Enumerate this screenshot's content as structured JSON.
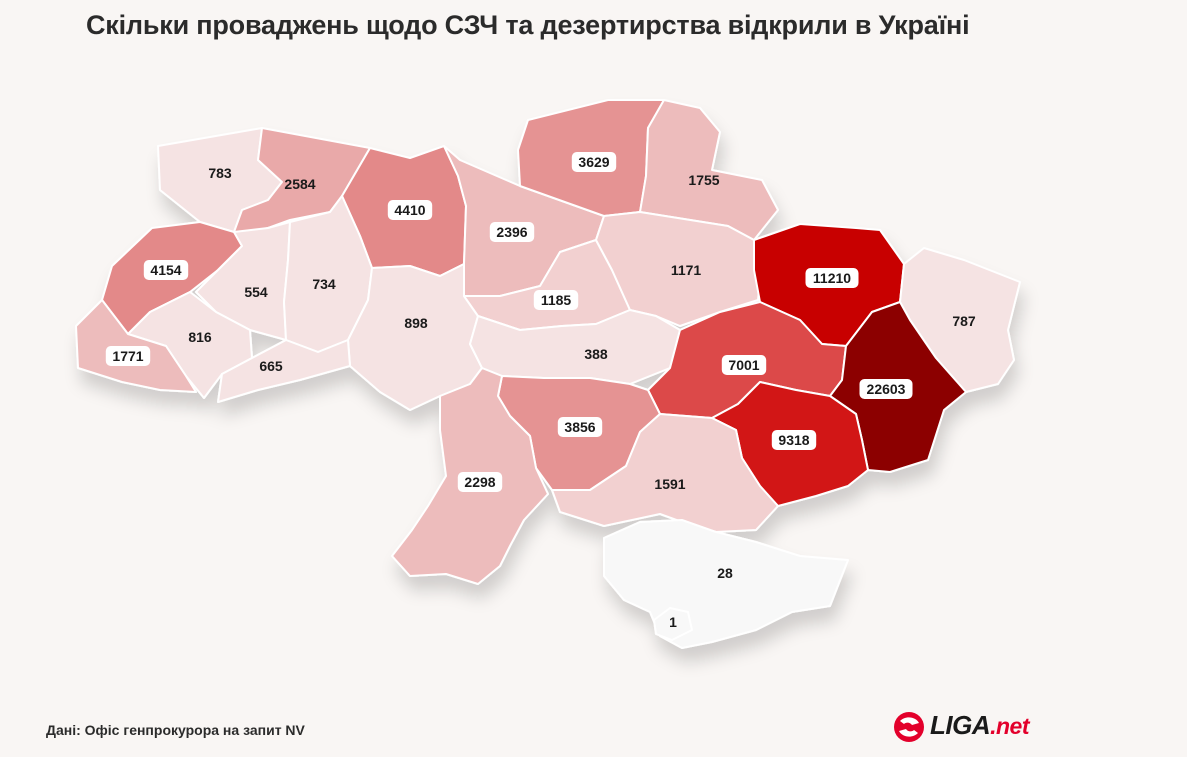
{
  "title": "Скільки проваджень щодо СЗЧ та дезертирства відкрили в Україні",
  "source": "Дані: Офіс генпрокурора на запит NV",
  "logo": {
    "main": "LIGA",
    "suffix": ".net"
  },
  "colors": {
    "scale": [
      "#f8f8f8",
      "#f5e3e3",
      "#f2d0d0",
      "#edbcbc",
      "#e9a9a9",
      "#e59393",
      "#e38989",
      "#dc4a4a",
      "#d21515",
      "#c80000",
      "#8c0000"
    ],
    "brand_red": "#e3002b"
  },
  "regions": [
    {
      "id": "volyn",
      "value": "783"
    },
    {
      "id": "rivne",
      "value": "2584"
    },
    {
      "id": "zhytomyr",
      "value": "4410"
    },
    {
      "id": "kyiv",
      "value": "2396"
    },
    {
      "id": "chernihiv",
      "value": "3629"
    },
    {
      "id": "sumy",
      "value": "1755"
    },
    {
      "id": "lviv",
      "value": "4154"
    },
    {
      "id": "ternopil",
      "value": "554"
    },
    {
      "id": "khmelnytskyi",
      "value": "734"
    },
    {
      "id": "vinnytsia",
      "value": "898"
    },
    {
      "id": "cherkasy",
      "value": "1185"
    },
    {
      "id": "poltava",
      "value": "1171"
    },
    {
      "id": "kharkiv",
      "value": "11210"
    },
    {
      "id": "luhansk",
      "value": "787"
    },
    {
      "id": "ivano-frankivsk",
      "value": "816"
    },
    {
      "id": "zakarpattia",
      "value": "1771"
    },
    {
      "id": "chernivtsi",
      "value": "665"
    },
    {
      "id": "kirovohrad",
      "value": "388"
    },
    {
      "id": "dnipropetrovsk",
      "value": "7001"
    },
    {
      "id": "donetsk",
      "value": "22603"
    },
    {
      "id": "zaporizhzhia",
      "value": "9318"
    },
    {
      "id": "mykolaiv",
      "value": "3856"
    },
    {
      "id": "odesa",
      "value": "2298"
    },
    {
      "id": "kherson",
      "value": "1591"
    },
    {
      "id": "crimea",
      "value": "28"
    },
    {
      "id": "sevastopol",
      "value": "1"
    }
  ]
}
